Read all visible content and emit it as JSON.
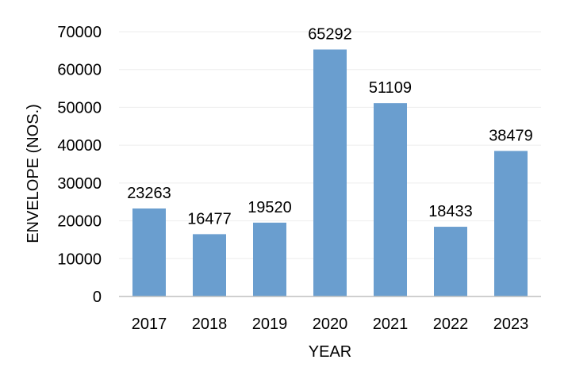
{
  "chart_data": {
    "type": "bar",
    "categories": [
      "2017",
      "2018",
      "2019",
      "2020",
      "2021",
      "2022",
      "2023"
    ],
    "values": [
      23263,
      16477,
      19520,
      65292,
      51109,
      18433,
      38479
    ],
    "data_labels": [
      "23263",
      "16477",
      "19520",
      "65292",
      "51109",
      "18433",
      "38479"
    ],
    "xlabel": "YEAR",
    "ylabel": "ENVELOPE (NOS.)",
    "ylim": [
      0,
      70000
    ],
    "yticks": [
      0,
      10000,
      20000,
      30000,
      40000,
      50000,
      60000,
      70000
    ],
    "ytick_labels": [
      "0",
      "10000",
      "20000",
      "30000",
      "40000",
      "50000",
      "60000",
      "70000"
    ],
    "grid": true,
    "bar_color": "#6a9ecf",
    "gridline_color": "#ededed",
    "axis_color": "#bfbfbf"
  }
}
